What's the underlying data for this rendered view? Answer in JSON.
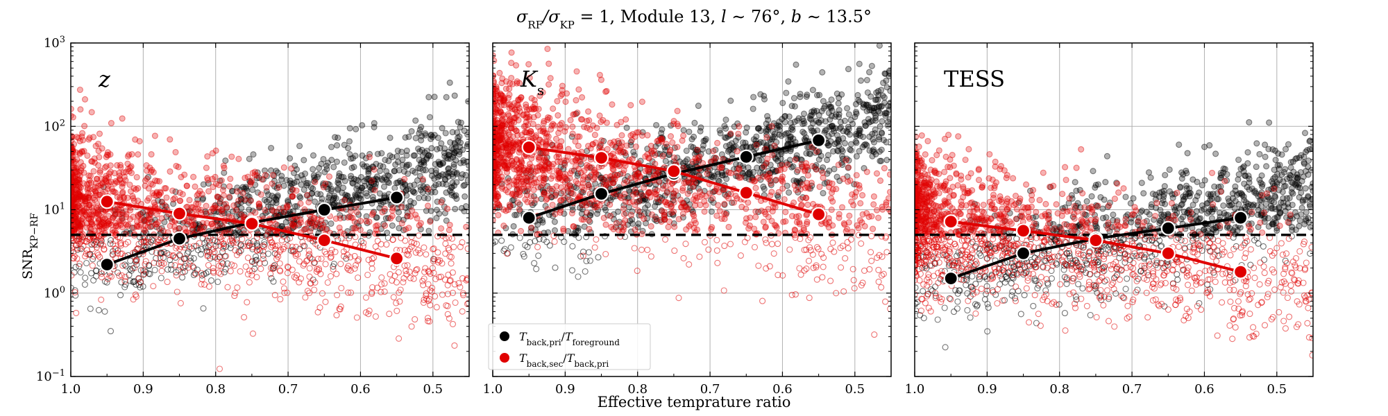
{
  "chart_data": {
    "type": "scatter",
    "title": "σ_RF/σ_KP = 1, Module 13, l ∼ 76°, b ∼ 13.5°",
    "title_parts": {
      "ratio_num": "σ",
      "ratio_num_sub": "RF",
      "ratio_den": "/σ",
      "ratio_den_sub": "KP",
      "rest": " = 1, Module 13, ",
      "l_label": "l",
      "l_value": " ∼ 76°,  ",
      "b_label": "b",
      "b_value": " ∼ 13.5°"
    },
    "xlabel": "Effective temprature ratio",
    "ylabel": "SNR",
    "ylabel_sub": "KP−RF",
    "x_axis_inverted": true,
    "xlim": [
      1.0,
      0.45
    ],
    "ylim": [
      0.1,
      1000
    ],
    "yscale": "log",
    "grid": true,
    "xtick_labels": [
      "1.0",
      "0.9",
      "0.8",
      "0.7",
      "0.6",
      "0.5"
    ],
    "xtick_values": [
      1.0,
      0.9,
      0.8,
      0.7,
      0.6,
      0.5
    ],
    "ytick_values": [
      0.1,
      1,
      10,
      100,
      1000
    ],
    "ytick_base": "10",
    "ytick_exponents": [
      "−1",
      "0",
      "1",
      "2",
      "3"
    ],
    "threshold_snr": 5,
    "legend": {
      "location": "lower-left of middle panel",
      "entries": [
        {
          "name": "T_back,pri/T_foreground",
          "color": "#000000",
          "parts": {
            "t1": "T",
            "s1": "back,pri",
            "slash": "/",
            "t2": "T",
            "s2": "foreground"
          }
        },
        {
          "name": "T_back,sec/T_back,pri",
          "color": "#e00000",
          "parts": {
            "t1": "T",
            "s1": "back,sec",
            "slash": "/",
            "t2": "T",
            "s2": "back,pri"
          }
        }
      ]
    },
    "panels": [
      {
        "band": "z",
        "band_italic": true,
        "series": [
          {
            "name": "T_back,pri/T_foreground",
            "color": "#000000",
            "x": [
              0.95,
              0.85,
              0.75,
              0.65,
              0.55
            ],
            "y": [
              2.2,
              4.5,
              7.0,
              10.0,
              14.0
            ]
          },
          {
            "name": "T_back,sec/T_back,pri",
            "color": "#e00000",
            "x": [
              0.95,
              0.85,
              0.75,
              0.65,
              0.55
            ],
            "y": [
              12.5,
              9.0,
              6.8,
              4.3,
              2.6
            ]
          }
        ],
        "scatter_clouds": {
          "black": {
            "y_at_x1": 1.8,
            "y_at_x05": 30,
            "spread_dex": 0.32
          },
          "red": {
            "y_at_x1": 13,
            "y_at_x05": 2.0,
            "spread_dex": 0.38
          }
        }
      },
      {
        "band": "K",
        "band_sub": "s",
        "band_italic": true,
        "series": [
          {
            "name": "T_back,pri/T_foreground",
            "color": "#000000",
            "x": [
              0.95,
              0.85,
              0.75,
              0.65,
              0.55
            ],
            "y": [
              8.0,
              15.5,
              27.0,
              43.0,
              68.0
            ]
          },
          {
            "name": "T_back,sec/T_back,pri",
            "color": "#e00000",
            "x": [
              0.95,
              0.85,
              0.75,
              0.65,
              0.55
            ],
            "y": [
              56.0,
              42.0,
              29.0,
              16.0,
              8.8
            ]
          }
        ],
        "scatter_clouds": {
          "black": {
            "y_at_x1": 6,
            "y_at_x05": 110,
            "spread_dex": 0.3
          },
          "red": {
            "y_at_x1": 60,
            "y_at_x05": 6,
            "spread_dex": 0.4
          }
        }
      },
      {
        "band": "TESS",
        "band_italic": false,
        "series": [
          {
            "name": "T_back,pri/T_foreground",
            "color": "#000000",
            "x": [
              0.95,
              0.85,
              0.75,
              0.65,
              0.55
            ],
            "y": [
              1.5,
              3.0,
              4.5,
              6.0,
              8.0
            ]
          },
          {
            "name": "T_back,sec/T_back,pri",
            "color": "#e00000",
            "x": [
              0.95,
              0.85,
              0.75,
              0.65,
              0.55
            ],
            "y": [
              7.2,
              5.6,
              4.3,
              3.0,
              1.8
            ]
          }
        ],
        "scatter_clouds": {
          "black": {
            "y_at_x1": 1.2,
            "y_at_x05": 14,
            "spread_dex": 0.32
          },
          "red": {
            "y_at_x1": 8,
            "y_at_x05": 1.4,
            "spread_dex": 0.38
          }
        }
      }
    ]
  }
}
